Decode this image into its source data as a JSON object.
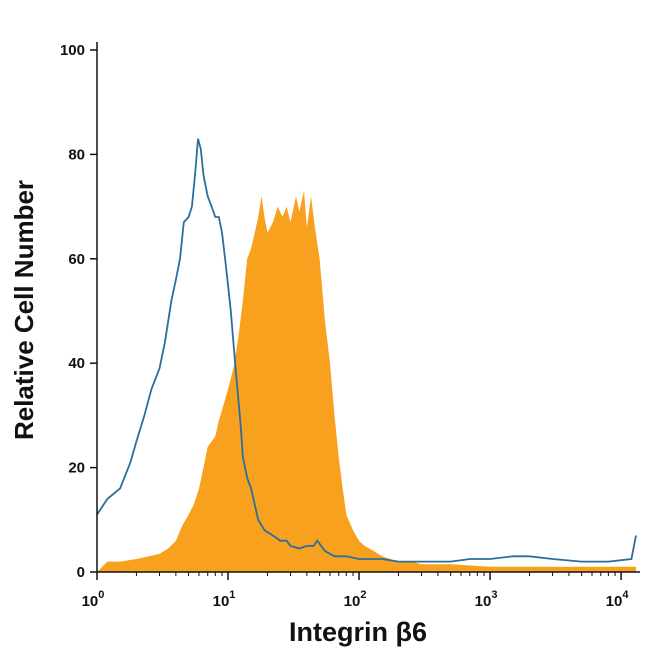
{
  "chart_data": {
    "type": "histogram",
    "xlabel": "Integrin β6",
    "ylabel": "Relative Cell Number",
    "x_scale": "log",
    "xlim": [
      1,
      13000
    ],
    "ylim": [
      0,
      100
    ],
    "y_ticks": [
      0,
      20,
      40,
      60,
      80,
      100
    ],
    "y_tick_labels": [
      "0",
      "20",
      "40",
      "60",
      "80",
      "100"
    ],
    "x_ticks": [
      1,
      10,
      100,
      1000,
      10000
    ],
    "x_tick_labels": [
      {
        "base": "10",
        "exp": "0"
      },
      {
        "base": "10",
        "exp": "1"
      },
      {
        "base": "10",
        "exp": "2"
      },
      {
        "base": "10",
        "exp": "3"
      },
      {
        "base": "10",
        "exp": "4"
      }
    ],
    "grid": false,
    "legend": "none",
    "series": [
      {
        "style": "filled",
        "color": "#f7a11e",
        "points": [
          [
            1,
            0
          ],
          [
            1.2,
            2
          ],
          [
            1.5,
            2
          ],
          [
            2,
            2.5
          ],
          [
            2.5,
            3
          ],
          [
            3,
            3.5
          ],
          [
            3.5,
            4.5
          ],
          [
            4,
            6
          ],
          [
            4.5,
            9
          ],
          [
            5,
            11
          ],
          [
            5.5,
            13
          ],
          [
            6,
            16
          ],
          [
            6.5,
            20
          ],
          [
            7,
            24
          ],
          [
            7.5,
            25
          ],
          [
            8,
            26
          ],
          [
            8.5,
            29
          ],
          [
            9,
            31
          ],
          [
            10,
            35
          ],
          [
            11,
            39
          ],
          [
            12,
            45
          ],
          [
            13,
            52
          ],
          [
            14,
            60
          ],
          [
            15,
            62
          ],
          [
            16,
            65
          ],
          [
            17,
            68
          ],
          [
            18,
            72
          ],
          [
            19,
            68
          ],
          [
            20,
            65
          ],
          [
            22,
            67
          ],
          [
            24,
            70
          ],
          [
            26,
            68
          ],
          [
            28,
            70
          ],
          [
            30,
            67
          ],
          [
            33,
            72
          ],
          [
            35,
            69
          ],
          [
            38,
            73
          ],
          [
            40,
            66
          ],
          [
            43,
            72
          ],
          [
            46,
            66
          ],
          [
            50,
            60
          ],
          [
            55,
            48
          ],
          [
            60,
            40
          ],
          [
            65,
            30
          ],
          [
            70,
            22
          ],
          [
            75,
            16
          ],
          [
            80,
            11
          ],
          [
            90,
            8
          ],
          [
            100,
            6
          ],
          [
            110,
            5
          ],
          [
            130,
            4
          ],
          [
            150,
            3
          ],
          [
            200,
            2
          ],
          [
            250,
            2
          ],
          [
            300,
            1.5
          ],
          [
            500,
            1.5
          ],
          [
            1000,
            1
          ],
          [
            3000,
            1
          ],
          [
            13000,
            1
          ],
          [
            13000,
            0
          ]
        ]
      },
      {
        "style": "outline",
        "color": "#2b6e9e",
        "points": [
          [
            1,
            11
          ],
          [
            1.2,
            14
          ],
          [
            1.5,
            16
          ],
          [
            1.8,
            21
          ],
          [
            2,
            25
          ],
          [
            2.3,
            30
          ],
          [
            2.6,
            35
          ],
          [
            3,
            39
          ],
          [
            3.3,
            44
          ],
          [
            3.7,
            52
          ],
          [
            4,
            56
          ],
          [
            4.3,
            60
          ],
          [
            4.6,
            67
          ],
          [
            5,
            68
          ],
          [
            5.3,
            70
          ],
          [
            5.6,
            76
          ],
          [
            5.9,
            83
          ],
          [
            6.2,
            81
          ],
          [
            6.5,
            76
          ],
          [
            7,
            72
          ],
          [
            7.5,
            70
          ],
          [
            8,
            68
          ],
          [
            8.5,
            68
          ],
          [
            9,
            65
          ],
          [
            9.5,
            60
          ],
          [
            10,
            55
          ],
          [
            10.5,
            50
          ],
          [
            11,
            44
          ],
          [
            11.5,
            38
          ],
          [
            12,
            33
          ],
          [
            12.5,
            28
          ],
          [
            13,
            22
          ],
          [
            14,
            18
          ],
          [
            15,
            16
          ],
          [
            17,
            10
          ],
          [
            19,
            8
          ],
          [
            22,
            7
          ],
          [
            25,
            6
          ],
          [
            28,
            6
          ],
          [
            30,
            5
          ],
          [
            35,
            4.5
          ],
          [
            40,
            5
          ],
          [
            45,
            5
          ],
          [
            48,
            6
          ],
          [
            55,
            4
          ],
          [
            65,
            3
          ],
          [
            80,
            3
          ],
          [
            100,
            2.5
          ],
          [
            150,
            2.5
          ],
          [
            200,
            2
          ],
          [
            300,
            2
          ],
          [
            500,
            2
          ],
          [
            700,
            2.5
          ],
          [
            1000,
            2.5
          ],
          [
            1500,
            3
          ],
          [
            2000,
            3
          ],
          [
            3000,
            2.5
          ],
          [
            5000,
            2
          ],
          [
            8000,
            2
          ],
          [
            12000,
            2.5
          ],
          [
            13000,
            7
          ]
        ]
      }
    ]
  }
}
